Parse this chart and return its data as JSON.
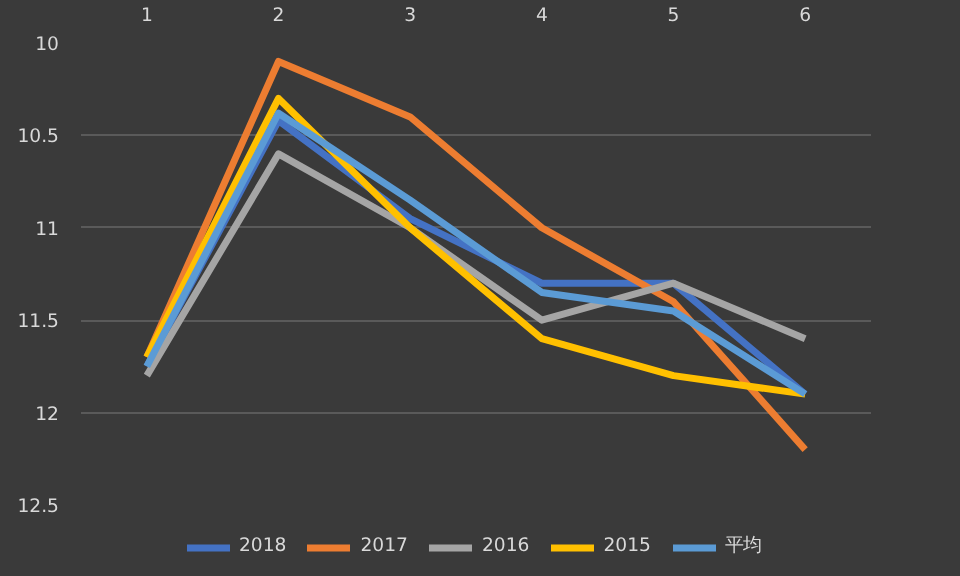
{
  "chart_data": {
    "type": "line",
    "categories": [
      "1",
      "2",
      "3",
      "4",
      "5",
      "6"
    ],
    "ylim": [
      12.5,
      10
    ],
    "yticks": [
      10,
      10.5,
      11,
      11.5,
      12,
      12.5
    ],
    "grid": "y",
    "legend": "bottom",
    "marker": "none",
    "line_style": "solid",
    "series": [
      {
        "name": "2018",
        "color": "#4472c4",
        "values": [
          11.75,
          10.42,
          10.95,
          11.3,
          11.3,
          11.9
        ]
      },
      {
        "name": "2017",
        "color": "#ed7d31",
        "values": [
          11.7,
          10.1,
          10.4,
          11.0,
          11.4,
          12.2
        ]
      },
      {
        "name": "2016",
        "color": "#a5a5a5",
        "values": [
          11.8,
          10.6,
          11.0,
          11.5,
          11.3,
          11.6
        ]
      },
      {
        "name": "2015",
        "color": "#ffc000",
        "values": [
          11.7,
          10.3,
          11.0,
          11.6,
          11.8,
          11.9
        ]
      },
      {
        "name": "平均",
        "color": "#5b9bd5",
        "values": [
          11.75,
          10.38,
          10.85,
          11.35,
          11.45,
          11.9
        ]
      }
    ]
  }
}
